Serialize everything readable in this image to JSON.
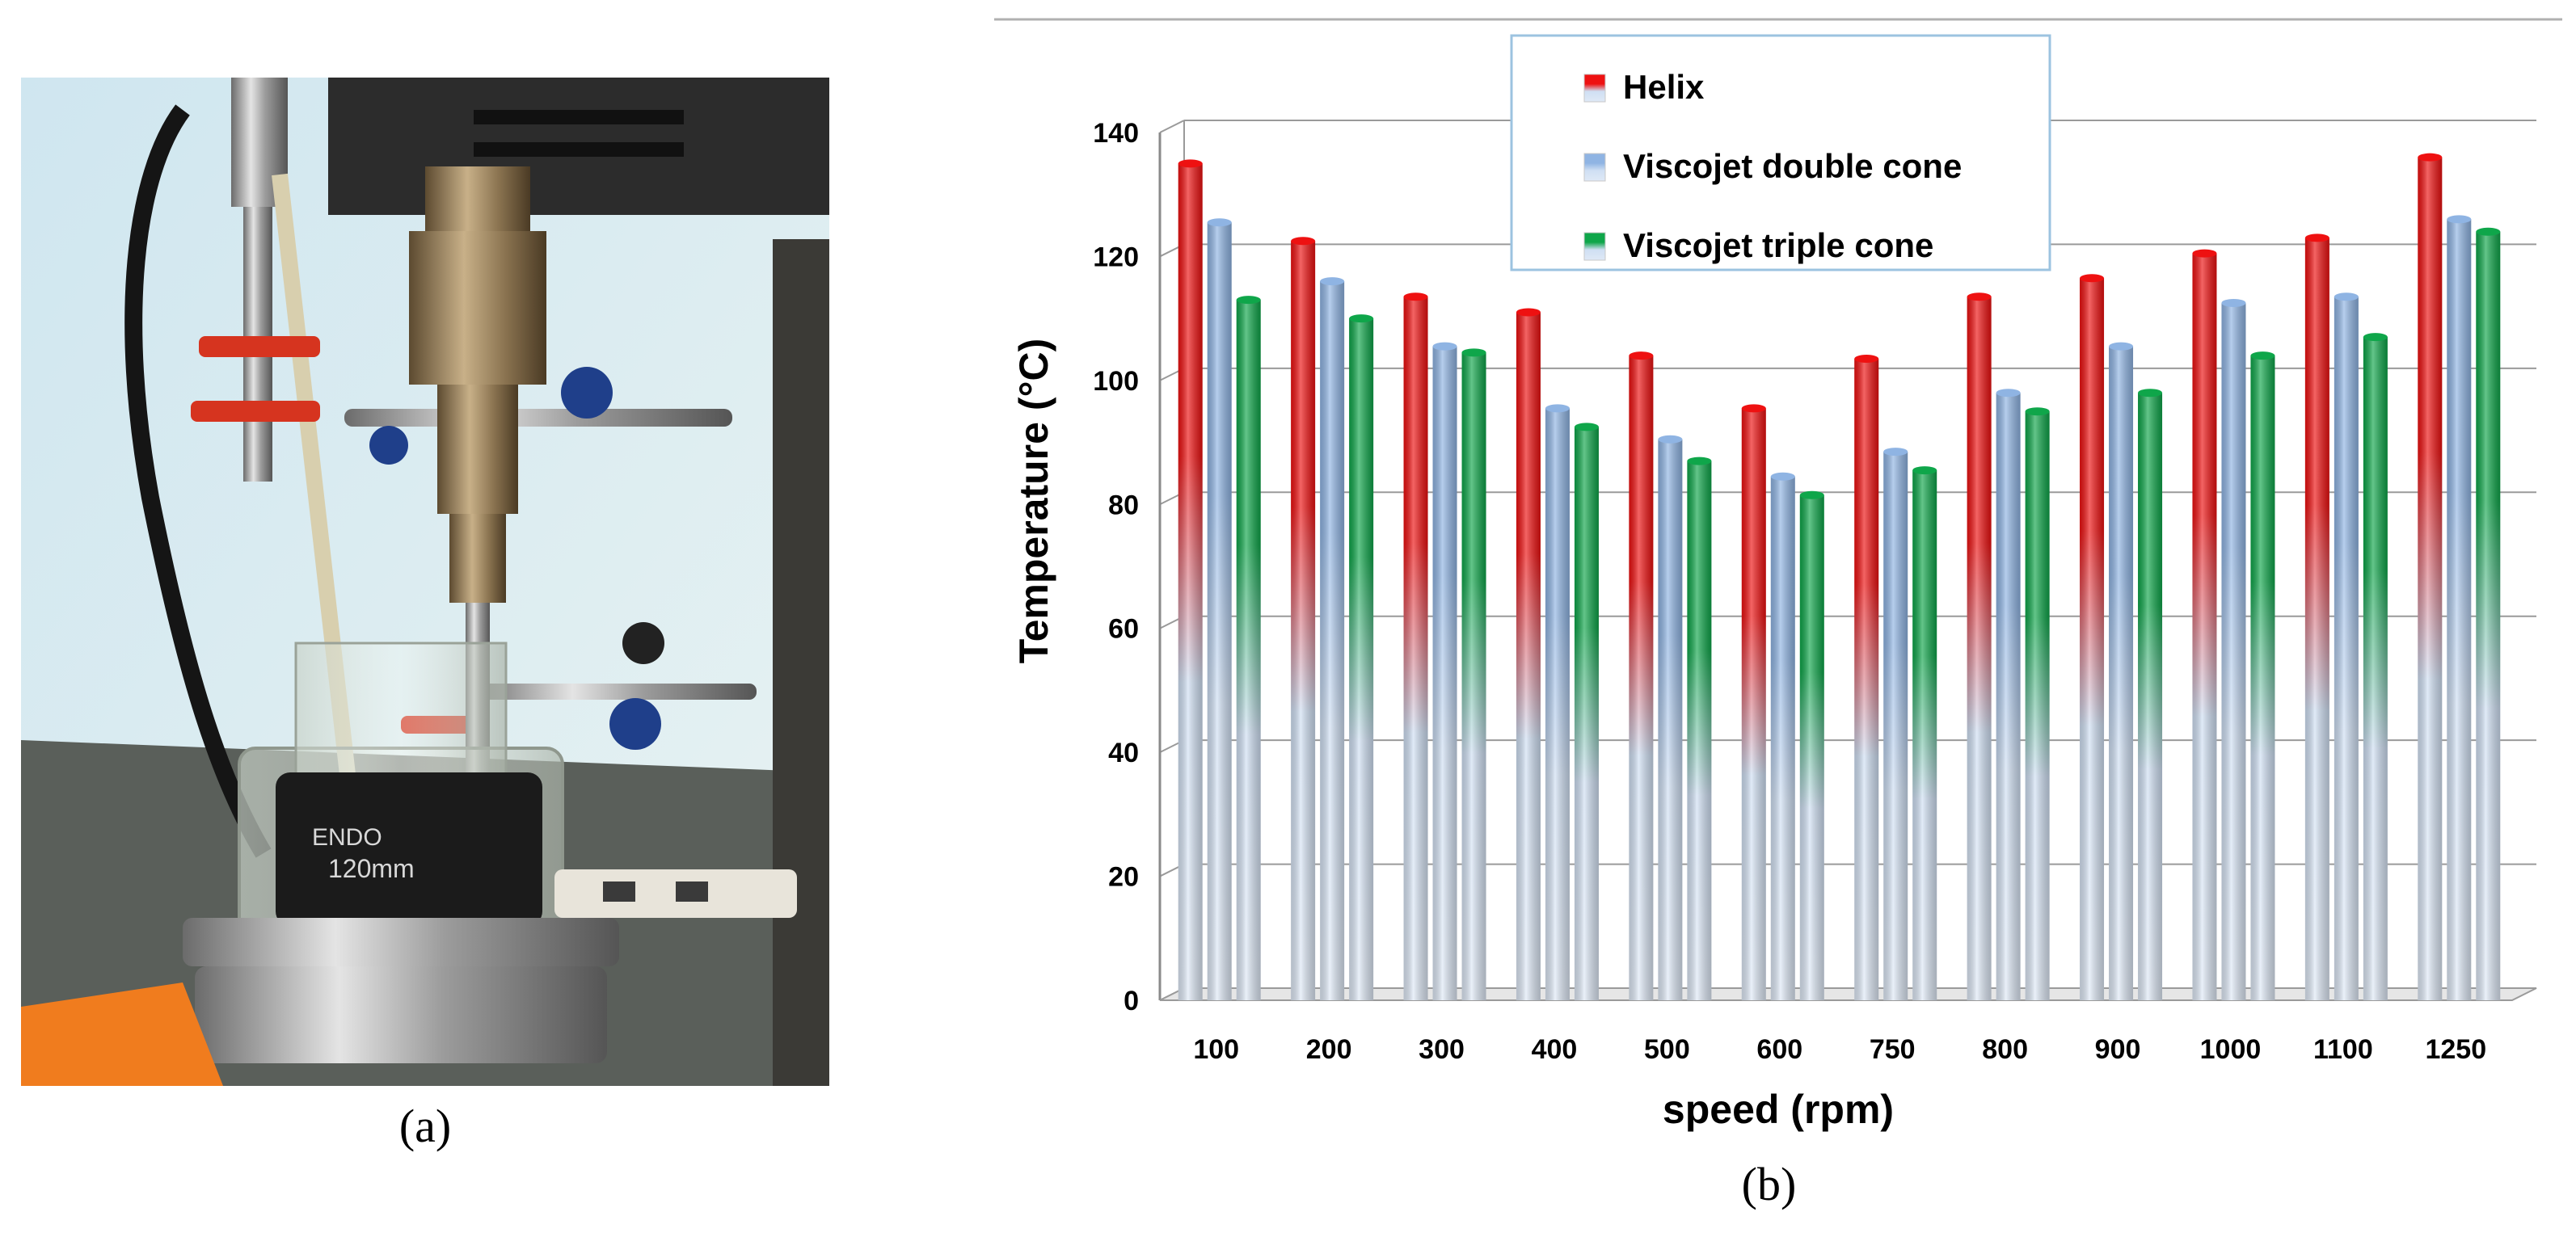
{
  "figure": {
    "caption_a": "(a)",
    "caption_b": "(b)"
  },
  "photo": {
    "label_brand": "ENDO",
    "label_size": "120mm"
  },
  "chart_data": {
    "type": "bar",
    "title": "",
    "xlabel": "speed (rpm)",
    "ylabel": "Temperature (°C)",
    "ylim": [
      0,
      140
    ],
    "yticks": [
      0,
      20,
      40,
      60,
      80,
      100,
      120,
      140
    ],
    "grid": true,
    "legend_position": "top-center",
    "categories": [
      "100",
      "200",
      "300",
      "400",
      "500",
      "600",
      "750",
      "800",
      "900",
      "1000",
      "1100",
      "1250"
    ],
    "series": [
      {
        "name": "Helix",
        "color": "#ee1111",
        "values": [
          135,
          122.5,
          113.5,
          111,
          104,
          95.5,
          103.5,
          113.5,
          116.5,
          120.5,
          123,
          136
        ]
      },
      {
        "name": "Viscojet double cone",
        "color": "#8fb4e3",
        "values": [
          125.5,
          116,
          105.5,
          95.5,
          90.5,
          84.5,
          88.5,
          98,
          105.5,
          112.5,
          113.5,
          126
        ]
      },
      {
        "name": "Viscojet triple cone",
        "color": "#0fa64a",
        "values": [
          113,
          110,
          104.5,
          92.5,
          87,
          81.5,
          85.5,
          95,
          98,
          104,
          107,
          124
        ]
      }
    ]
  }
}
